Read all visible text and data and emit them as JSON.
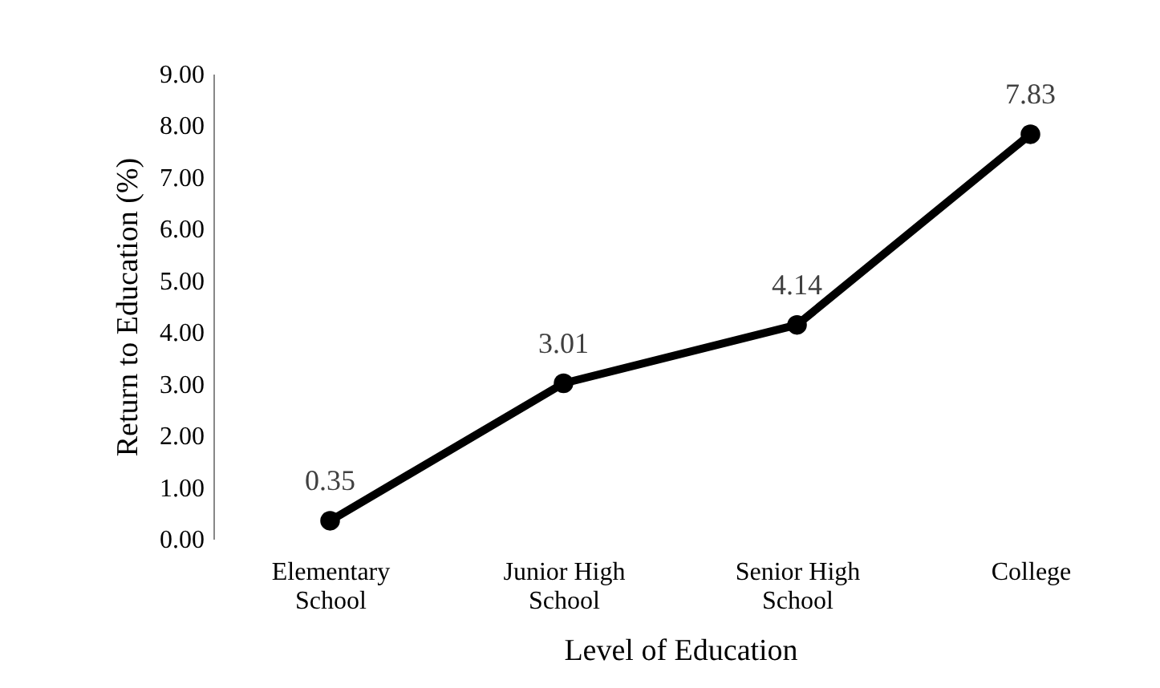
{
  "chart_data": {
    "type": "line",
    "xlabel": "Level of Education",
    "ylabel": "Return to Education (%)",
    "categories": [
      "Elementary School",
      "Junior High School",
      "Senior High School",
      "College"
    ],
    "series": [
      {
        "color": "#000000",
        "values": [
          0.35,
          3.01,
          4.14,
          7.83
        ]
      }
    ],
    "ylim": [
      0,
      9
    ],
    "yticks": [
      {
        "value": 0,
        "label": "0.00"
      },
      {
        "value": 1,
        "label": "1.00"
      },
      {
        "value": 2,
        "label": "2.00"
      },
      {
        "value": 3,
        "label": "3.00"
      },
      {
        "value": 4,
        "label": "4.00"
      },
      {
        "value": 5,
        "label": "5.00"
      },
      {
        "value": 6,
        "label": "6.00"
      },
      {
        "value": 7,
        "label": "7.00"
      },
      {
        "value": 8,
        "label": "8.00"
      },
      {
        "value": 9,
        "label": "9.00"
      }
    ],
    "grid": false,
    "marker": "circle",
    "line_style": "solid",
    "data_labels": true
  }
}
